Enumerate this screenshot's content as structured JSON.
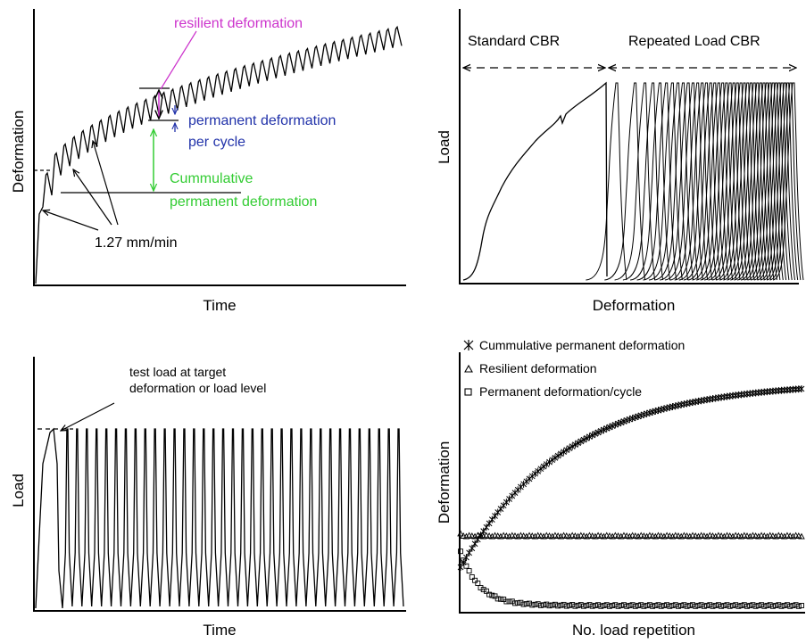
{
  "panels": {
    "a": {
      "xlabel": "Time",
      "ylabel": "Deformation",
      "annotations": {
        "resilient": "resilient deformation",
        "permanent_per_cycle_1": "permanent deformation",
        "permanent_per_cycle_2": "per cycle",
        "cumulative_1": "Cummulative",
        "cumulative_2": "permanent deformation",
        "rate": "1.27 mm/min"
      },
      "colors": {
        "resilient": "#cc33cc",
        "permanent": "#2233aa",
        "cumulative": "#33cc33"
      }
    },
    "b": {
      "xlabel": "Deformation",
      "ylabel": "Load",
      "regions": {
        "standard": "Standard CBR",
        "repeated": "Repeated Load CBR"
      }
    },
    "c": {
      "xlabel": "Time",
      "ylabel": "Load",
      "annotation_1": "test load at target",
      "annotation_2": "deformation or load level"
    },
    "d": {
      "xlabel": "No. load repetition",
      "ylabel": "Deformation",
      "legend": [
        {
          "marker": "asterisk",
          "label": "Cummulative permanent deformation"
        },
        {
          "marker": "triangle",
          "label": "Resilient deformation"
        },
        {
          "marker": "square",
          "label": "Permanent deformation/cycle"
        }
      ]
    }
  },
  "chart_data": [
    {
      "type": "line",
      "title": "",
      "xlabel": "Time",
      "ylabel": "Deformation",
      "description_series": [
        {
          "name": "resilient deformation",
          "shape": "sawtooth over rising permanent deformation",
          "cycles": 40
        }
      ]
    },
    {
      "type": "line",
      "xlabel": "Deformation",
      "ylabel": "Load",
      "series": [
        {
          "name": "Standard CBR",
          "curves": 1
        },
        {
          "name": "Repeated Load CBR",
          "curves": 40
        }
      ]
    },
    {
      "type": "line",
      "xlabel": "Time",
      "ylabel": "Load",
      "series": [
        {
          "name": "",
          "cycles": 35
        }
      ]
    },
    {
      "type": "scatter",
      "xlabel": "No. load repetition",
      "ylabel": "Deformation",
      "series": [
        {
          "name": "Cummulative permanent deformation",
          "trend": "increasing, concave"
        },
        {
          "name": "Resilient deformation",
          "trend": "constant"
        },
        {
          "name": "Permanent deformation/cycle",
          "trend": "decreasing, levels off"
        }
      ]
    }
  ]
}
